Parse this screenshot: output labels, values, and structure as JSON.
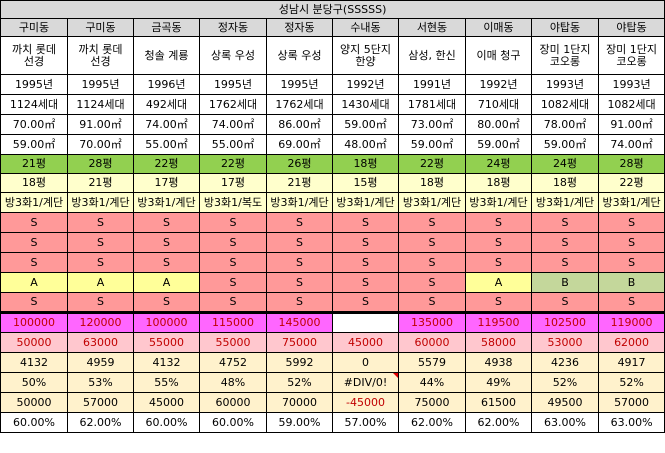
{
  "title": "성남시 분당구(SSSSS)",
  "columns": [
    {
      "dong": "구미동",
      "apt": "까치 롯데\n선경",
      "year": "1995년",
      "households": "1124세대",
      "area_supply": "70.00㎡",
      "area_exclusive": "59.00㎡",
      "pyeong_supply": "21평",
      "pyeong_exclusive": "18평",
      "structure": "방3화1/계단",
      "g1": "S",
      "g2": "S",
      "g3": "S",
      "g4": "A",
      "g5": "S",
      "price_sale": "100000",
      "price_jeonse": "50000",
      "per_pyeong": "4132",
      "ratio": "50%",
      "gap": "50000",
      "loan": "60.00%"
    },
    {
      "dong": "구미동",
      "apt": "까치 롯데\n선경",
      "year": "1995년",
      "households": "1124세대",
      "area_supply": "91.00㎡",
      "area_exclusive": "70.00㎡",
      "pyeong_supply": "28평",
      "pyeong_exclusive": "21평",
      "structure": "방3화1/계단",
      "g1": "S",
      "g2": "S",
      "g3": "S",
      "g4": "A",
      "g5": "S",
      "price_sale": "120000",
      "price_jeonse": "63000",
      "per_pyeong": "4959",
      "ratio": "53%",
      "gap": "57000",
      "loan": "62.00%"
    },
    {
      "dong": "금곡동",
      "apt": "청솔 계룡",
      "year": "1996년",
      "households": "492세대",
      "area_supply": "74.00㎡",
      "area_exclusive": "55.00㎡",
      "pyeong_supply": "22평",
      "pyeong_exclusive": "17평",
      "structure": "방3화1/계단",
      "g1": "S",
      "g2": "S",
      "g3": "S",
      "g4": "A",
      "g5": "S",
      "price_sale": "100000",
      "price_jeonse": "55000",
      "per_pyeong": "4132",
      "ratio": "55%",
      "gap": "45000",
      "loan": "60.00%"
    },
    {
      "dong": "정자동",
      "apt": "상록 우성",
      "year": "1995년",
      "households": "1762세대",
      "area_supply": "74.00㎡",
      "area_exclusive": "55.00㎡",
      "pyeong_supply": "22평",
      "pyeong_exclusive": "17평",
      "structure": "방3화1/복도",
      "g1": "S",
      "g2": "S",
      "g3": "S",
      "g4": "S",
      "g5": "S",
      "price_sale": "115000",
      "price_jeonse": "55000",
      "per_pyeong": "4752",
      "ratio": "48%",
      "gap": "60000",
      "loan": "60.00%"
    },
    {
      "dong": "정자동",
      "apt": "상록 우성",
      "year": "1995년",
      "households": "1762세대",
      "area_supply": "86.00㎡",
      "area_exclusive": "69.00㎡",
      "pyeong_supply": "26평",
      "pyeong_exclusive": "21평",
      "structure": "방3화1/계단",
      "g1": "S",
      "g2": "S",
      "g3": "S",
      "g4": "S",
      "g5": "S",
      "price_sale": "145000",
      "price_jeonse": "75000",
      "per_pyeong": "5992",
      "ratio": "52%",
      "gap": "70000",
      "loan": "59.00%"
    },
    {
      "dong": "수내동",
      "apt": "양지 5단지\n한양",
      "year": "1992년",
      "households": "1430세대",
      "area_supply": "59.00㎡",
      "area_exclusive": "48.00㎡",
      "pyeong_supply": "18평",
      "pyeong_exclusive": "15평",
      "structure": "방3화1/계단",
      "g1": "S",
      "g2": "S",
      "g3": "S",
      "g4": "S",
      "g5": "S",
      "price_sale": "",
      "price_jeonse": "45000",
      "per_pyeong": "0",
      "ratio": "#DIV/0!",
      "gap": "-45000",
      "loan": "57.00%"
    },
    {
      "dong": "서현동",
      "apt": "삼성, 한신",
      "year": "1991년",
      "households": "1781세대",
      "area_supply": "73.00㎡",
      "area_exclusive": "59.00㎡",
      "pyeong_supply": "22평",
      "pyeong_exclusive": "18평",
      "structure": "방3화1/계단",
      "g1": "S",
      "g2": "S",
      "g3": "S",
      "g4": "S",
      "g5": "S",
      "price_sale": "135000",
      "price_jeonse": "60000",
      "per_pyeong": "5579",
      "ratio": "44%",
      "gap": "75000",
      "loan": "62.00%"
    },
    {
      "dong": "이매동",
      "apt": "이매 청구",
      "year": "1992년",
      "households": "710세대",
      "area_supply": "80.00㎡",
      "area_exclusive": "59.00㎡",
      "pyeong_supply": "24평",
      "pyeong_exclusive": "18평",
      "structure": "방3화1/계단",
      "g1": "S",
      "g2": "S",
      "g3": "S",
      "g4": "A",
      "g5": "S",
      "price_sale": "119500",
      "price_jeonse": "58000",
      "per_pyeong": "4938",
      "ratio": "49%",
      "gap": "61500",
      "loan": "62.00%"
    },
    {
      "dong": "야탑동",
      "apt": "장미 1단지\n코오롱",
      "year": "1993년",
      "households": "1082세대",
      "area_supply": "78.00㎡",
      "area_exclusive": "59.00㎡",
      "pyeong_supply": "24평",
      "pyeong_exclusive": "18평",
      "structure": "방3화1/계단",
      "g1": "S",
      "g2": "S",
      "g3": "S",
      "g4": "B",
      "g5": "S",
      "price_sale": "102500",
      "price_jeonse": "53000",
      "per_pyeong": "4236",
      "ratio": "52%",
      "gap": "49500",
      "loan": "63.00%"
    },
    {
      "dong": "야탑동",
      "apt": "장미 1단지\n코오롱",
      "year": "1993년",
      "households": "1082세대",
      "area_supply": "91.00㎡",
      "area_exclusive": "74.00㎡",
      "pyeong_supply": "28평",
      "pyeong_exclusive": "22평",
      "structure": "방3화1/계단",
      "g1": "S",
      "g2": "S",
      "g3": "S",
      "g4": "B",
      "g5": "S",
      "price_sale": "119000",
      "price_jeonse": "62000",
      "per_pyeong": "4917",
      "ratio": "52%",
      "gap": "57000",
      "loan": "63.00%"
    }
  ]
}
